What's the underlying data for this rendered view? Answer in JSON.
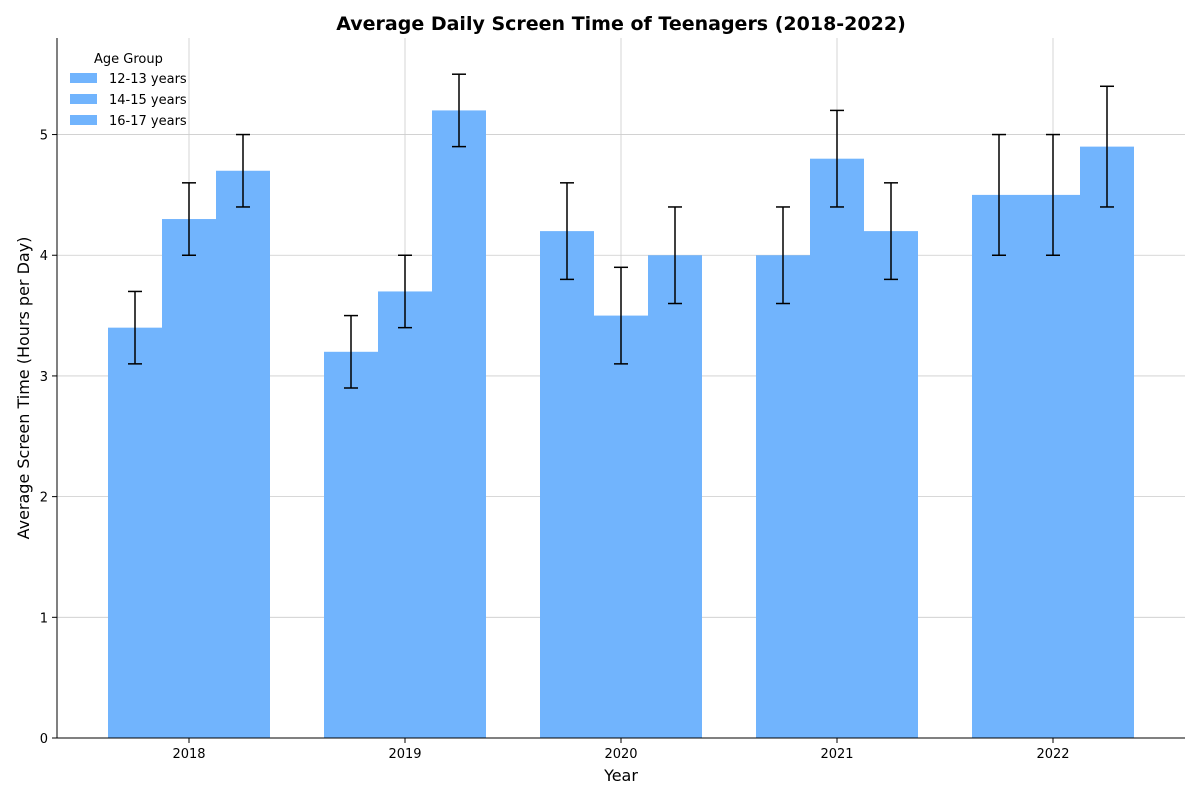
{
  "chart_data": {
    "type": "bar",
    "title": "Average Daily Screen Time of Teenagers (2018-2022)",
    "xlabel": "Year",
    "ylabel": "Average Screen Time (Hours per Day)",
    "categories": [
      "2018",
      "2019",
      "2020",
      "2021",
      "2022"
    ],
    "ylim": [
      0,
      5.8
    ],
    "yticks": [
      0,
      1,
      2,
      3,
      4,
      5
    ],
    "grid": true,
    "legend": {
      "title": "Age Group",
      "placement": "top-left"
    },
    "bar_color": "#71b4fd",
    "error_color": "#000000",
    "series": [
      {
        "name": "12-13 years",
        "values": [
          3.4,
          3.2,
          4.2,
          4.0,
          4.5
        ],
        "errors": [
          0.3,
          0.3,
          0.4,
          0.4,
          0.5
        ]
      },
      {
        "name": "14-15 years",
        "values": [
          4.3,
          3.7,
          3.5,
          4.8,
          4.5
        ],
        "errors": [
          0.3,
          0.3,
          0.4,
          0.4,
          0.5
        ]
      },
      {
        "name": "16-17 years",
        "values": [
          4.7,
          5.2,
          4.0,
          4.2,
          4.9
        ],
        "errors": [
          0.3,
          0.3,
          0.4,
          0.4,
          0.5
        ]
      }
    ]
  }
}
